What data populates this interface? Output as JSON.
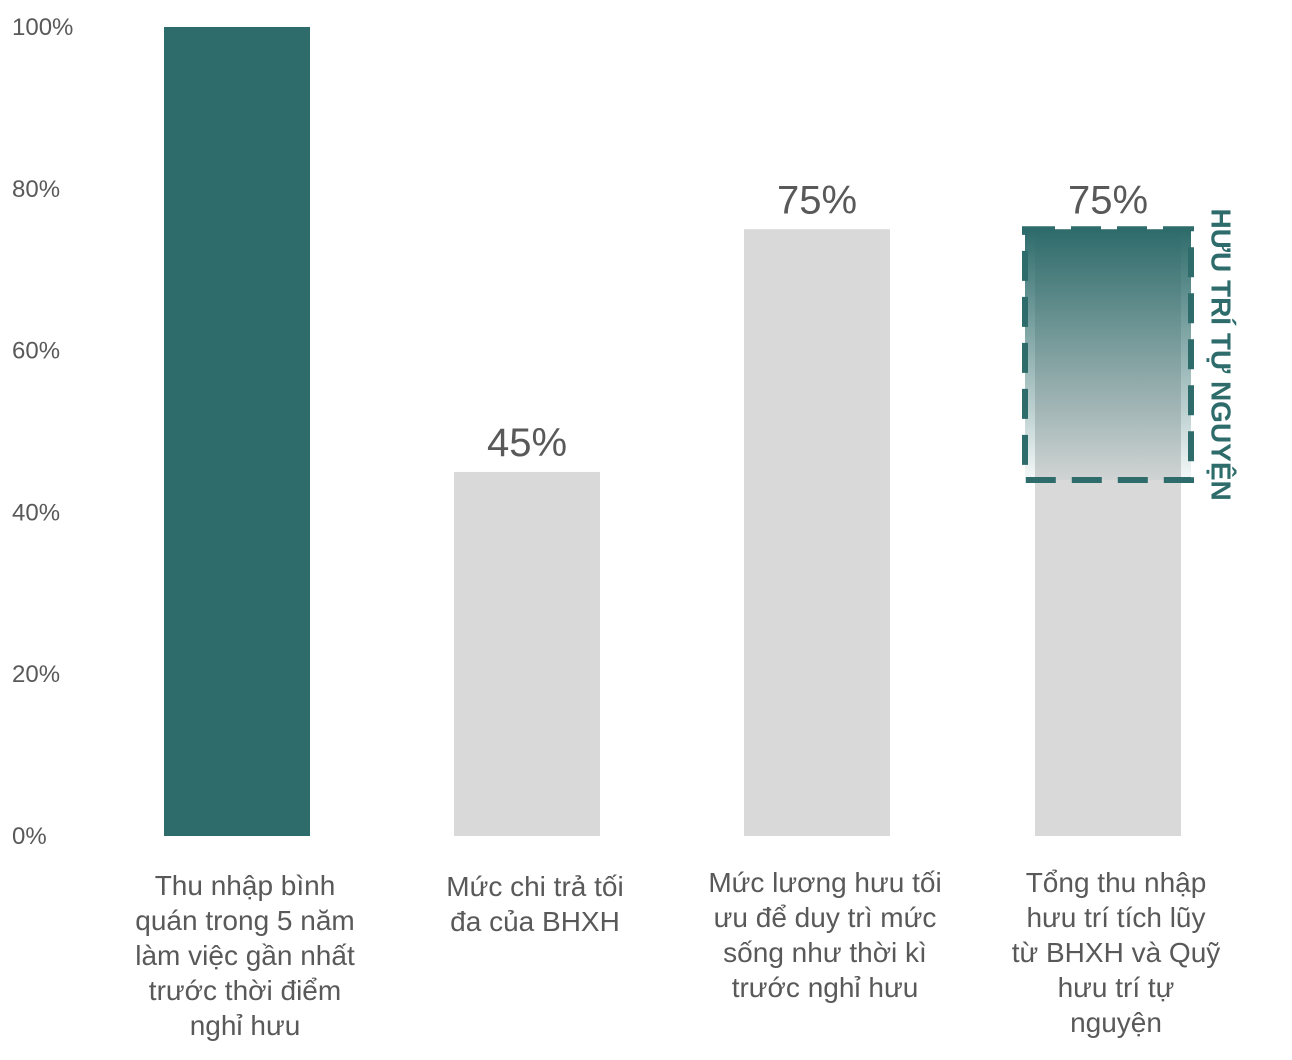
{
  "chart_data": {
    "type": "bar",
    "title": "",
    "xlabel": "",
    "ylabel": "",
    "ylim": [
      0,
      100
    ],
    "yticks": [
      "0%",
      "20%",
      "40%",
      "60%",
      "80%",
      "100%"
    ],
    "grid": false,
    "categories": [
      [
        "Thu nhập bình",
        "quán trong 5 năm",
        "làm việc gần nhất",
        "trước thời điểm",
        "nghỉ hưu"
      ],
      [
        "Mức chi trả tối",
        "đa của BHXH"
      ],
      [
        "Mức lương hưu tối",
        "ưu để duy trì mức",
        "sống như thời kì",
        "trước nghỉ hưu"
      ],
      [
        "Tổng thu nhập",
        "hưu trí tích lũy",
        "từ BHXH và Quỹ",
        "hưu trí tự",
        "nguyện"
      ]
    ],
    "values": [
      100,
      45,
      75,
      75
    ],
    "data_labels": [
      "",
      "45%",
      "75%",
      "75%"
    ],
    "stacked_segment": {
      "category_index": 3,
      "from": 44,
      "to": 75,
      "label": "HƯU TRÍ TỰ NGUYỆN",
      "style": "gradient-dashed-outline"
    },
    "colors": {
      "primary": "#2e6b6b",
      "gray": "#d9d9d9",
      "text": "#595959"
    }
  }
}
